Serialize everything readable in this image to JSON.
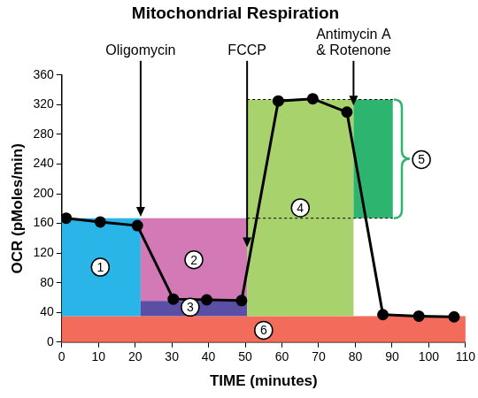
{
  "chart_data": {
    "type": "line",
    "title": "Mitochondrial Respiration",
    "x_label": "TIME (minutes)",
    "y_label": "OCR (pMoles/min)",
    "x": [
      1.2,
      10.5,
      20.6,
      30.4,
      39.5,
      49,
      59,
      68.4,
      77.7,
      87.5,
      97.3,
      106.9
    ],
    "values": [
      167,
      162,
      157,
      58,
      57,
      56,
      325,
      328,
      310,
      37,
      35,
      34
    ],
    "color": "#000000",
    "marker": "circle",
    "xlim": [
      0,
      110
    ],
    "xticks": [
      0,
      10,
      20,
      30,
      40,
      50,
      60,
      70,
      80,
      90,
      100,
      110
    ],
    "ylim": [
      0,
      360
    ],
    "yticks": [
      0,
      40,
      80,
      120,
      160,
      200,
      240,
      280,
      320,
      360
    ],
    "grid": false,
    "regions": [
      {
        "label": "6",
        "x": [
          0,
          110
        ],
        "y": [
          0,
          35
        ],
        "color": "#f26b5b",
        "label_at": [
          55,
          16
        ]
      },
      {
        "label": "1",
        "x": [
          0,
          21.5
        ],
        "y": [
          35,
          167
        ],
        "color": "#29b5e8",
        "label_at": [
          10.5,
          101
        ]
      },
      {
        "label": "2",
        "x": [
          21.5,
          50.5
        ],
        "y": [
          55.5,
          167
        ],
        "color": "#d379b6",
        "label_at": [
          36,
          111
        ]
      },
      {
        "label": "3",
        "x": [
          21.5,
          50.5
        ],
        "y": [
          35,
          55.5
        ],
        "color": "#5b4ea5",
        "label_at": [
          35,
          47
        ]
      },
      {
        "label": "4",
        "x": [
          50.5,
          79.5
        ],
        "y": [
          35,
          327
        ],
        "color": "#a8d26c",
        "label_at": [
          65,
          181
        ]
      },
      {
        "label": "5",
        "x": [
          79.5,
          90.2
        ],
        "y": [
          167,
          327
        ],
        "color": "#2db56f",
        "label_at": [
          98,
          246
        ]
      }
    ],
    "lines": [
      {
        "y": 167,
        "x": [
          50.5,
          90.2
        ],
        "line_style": "dashed"
      },
      {
        "y": 327,
        "x": [
          50.5,
          90.2
        ],
        "line_style": "dashed"
      }
    ],
    "brackets": [
      {
        "x": 90.5,
        "y": [
          167,
          327
        ],
        "color": "#2db56f"
      }
    ],
    "injections": [
      {
        "label": [
          "Oligomycin"
        ],
        "x": 21.5,
        "y": 169
      },
      {
        "label": [
          "FCCP"
        ],
        "x": 50.5,
        "y": 128
      },
      {
        "label": [
          "Antimycin A",
          "& Rotenone"
        ],
        "x": 79.5,
        "y": 319
      }
    ]
  }
}
